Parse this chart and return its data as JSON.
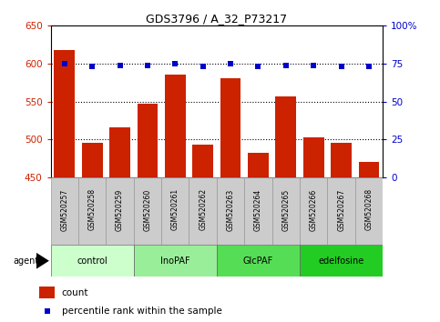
{
  "title": "GDS3796 / A_32_P73217",
  "samples": [
    "GSM520257",
    "GSM520258",
    "GSM520259",
    "GSM520260",
    "GSM520261",
    "GSM520262",
    "GSM520263",
    "GSM520264",
    "GSM520265",
    "GSM520266",
    "GSM520267",
    "GSM520268"
  ],
  "counts": [
    618,
    495,
    516,
    547,
    585,
    493,
    581,
    482,
    557,
    503,
    495,
    470
  ],
  "percentile_ranks": [
    75,
    73,
    74,
    74,
    75,
    73,
    75,
    73,
    74,
    74,
    73,
    73
  ],
  "bar_color": "#CC2200",
  "dot_color": "#0000CC",
  "ylim_left": [
    450,
    650
  ],
  "ylim_right": [
    0,
    100
  ],
  "yticks_left": [
    450,
    500,
    550,
    600,
    650
  ],
  "yticks_right": [
    0,
    25,
    50,
    75,
    100
  ],
  "ytick_labels_right": [
    "0",
    "25",
    "50",
    "75",
    "100%"
  ],
  "gridlines": [
    500,
    550,
    600
  ],
  "groups": [
    {
      "label": "control",
      "start": 0,
      "end": 3,
      "color": "#CCFFCC"
    },
    {
      "label": "InoPAF",
      "start": 3,
      "end": 6,
      "color": "#99EE99"
    },
    {
      "label": "GlcPAF",
      "start": 6,
      "end": 9,
      "color": "#55DD55"
    },
    {
      "label": "edelfosine",
      "start": 9,
      "end": 12,
      "color": "#22CC22"
    }
  ],
  "legend_count_color": "#CC2200",
  "legend_dot_color": "#0000CC",
  "agent_label": "agent",
  "tick_label_bg": "#CCCCCC",
  "tick_label_border": "#999999"
}
